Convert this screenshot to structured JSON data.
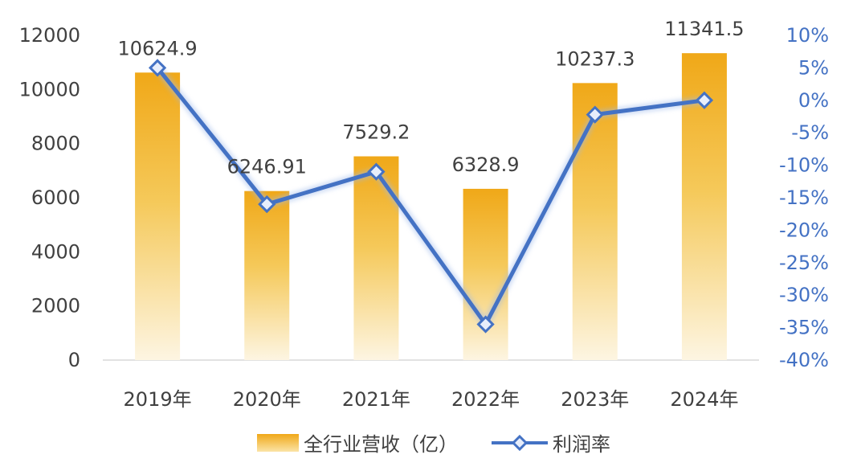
{
  "chart_data": {
    "type": "bar",
    "categories": [
      "2019年",
      "2020年",
      "2021年",
      "2022年",
      "2023年",
      "2024年"
    ],
    "series": [
      {
        "name": "全行业营收（亿）",
        "kind": "bar",
        "axis": "left",
        "values": [
          10624.9,
          6246.91,
          7529.2,
          6328.9,
          10237.3,
          11341.5
        ],
        "labels": [
          "10624.9",
          "6246.91",
          "7529.2",
          "6328.9",
          "10237.3",
          "11341.5"
        ],
        "color": "#f0ad1e"
      },
      {
        "name": "利润率",
        "kind": "line",
        "axis": "right",
        "values": [
          5,
          -16,
          -11,
          -34.5,
          -2.2,
          0
        ],
        "color": "#4472c4"
      }
    ],
    "left_axis": {
      "ylim": [
        0,
        12000
      ],
      "ticks": [
        "0",
        "2000",
        "4000",
        "6000",
        "8000",
        "10000",
        "12000"
      ],
      "tick_values": [
        0,
        2000,
        4000,
        6000,
        8000,
        10000,
        12000
      ]
    },
    "right_axis": {
      "ylim": [
        -40,
        10
      ],
      "ticks": [
        "-40%",
        "-35%",
        "-30%",
        "-25%",
        "-20%",
        "-15%",
        "-10%",
        "-5%",
        "0%",
        "5%",
        "10%"
      ],
      "tick_values": [
        -40,
        -35,
        -30,
        -25,
        -20,
        -15,
        -10,
        -5,
        0,
        5,
        10
      ]
    },
    "legend": {
      "placement": "bottom"
    },
    "grid": false
  }
}
